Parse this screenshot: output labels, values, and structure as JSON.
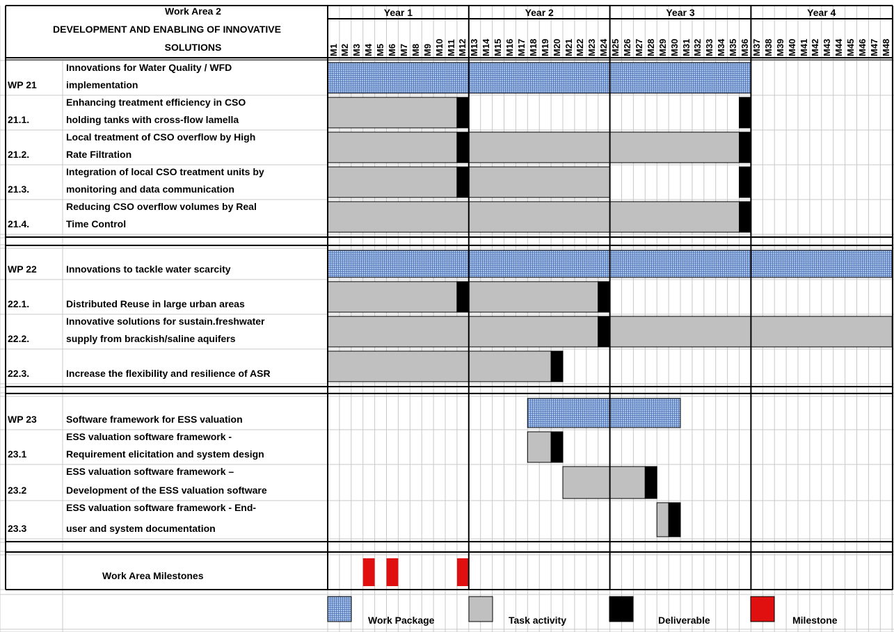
{
  "chart_data": {
    "type": "gantt",
    "header": {
      "line1": "Work Area 2",
      "line2": "DEVELOPMENT AND ENABLING OF INNOVATIVE",
      "line3": "SOLUTIONS"
    },
    "years": [
      "Year 1",
      "Year 2",
      "Year 3",
      "Year 4"
    ],
    "months": [
      "M1",
      "M2",
      "M3",
      "M4",
      "M5",
      "M6",
      "M7",
      "M8",
      "M9",
      "M10",
      "M11",
      "M12",
      "M13",
      "M14",
      "M15",
      "M16",
      "M17",
      "M18",
      "M19",
      "M20",
      "M21",
      "M22",
      "M23",
      "M24",
      "M25",
      "M26",
      "M27",
      "M28",
      "M29",
      "M30",
      "M31",
      "M32",
      "M33",
      "M34",
      "M35",
      "M36",
      "M37",
      "M38",
      "M39",
      "M40",
      "M41",
      "M42",
      "M43",
      "M44",
      "M45",
      "M46",
      "M47",
      "M48"
    ],
    "rows": [
      {
        "id": "WP 21",
        "name_line1": "Innovations for Water Quality / WFD",
        "name_line2": "implementation",
        "kind": "wp",
        "bars": [
          {
            "type": "work-package",
            "start": 1,
            "end": 36
          }
        ]
      },
      {
        "id": "21.1.",
        "name_line1": "Enhancing treatment efficiency in CSO",
        "name_line2": "holding tanks with cross-flow lamella",
        "kind": "task",
        "bars": [
          {
            "type": "task",
            "start": 1,
            "end": 11
          },
          {
            "type": "deliverable",
            "start": 12,
            "end": 12
          },
          {
            "type": "deliverable",
            "start": 36,
            "end": 36
          }
        ]
      },
      {
        "id": "21.2.",
        "name_line1": "Local treatment of CSO overflow by High",
        "name_line2": "Rate Filtration",
        "kind": "task",
        "bars": [
          {
            "type": "task",
            "start": 1,
            "end": 11
          },
          {
            "type": "deliverable",
            "start": 12,
            "end": 12
          },
          {
            "type": "task",
            "start": 13,
            "end": 35
          },
          {
            "type": "deliverable",
            "start": 36,
            "end": 36
          }
        ]
      },
      {
        "id": "21.3.",
        "name_line1": "Integration of local CSO treatment units by",
        "name_line2": "monitoring and data communication",
        "kind": "task",
        "bars": [
          {
            "type": "task",
            "start": 1,
            "end": 11
          },
          {
            "type": "deliverable",
            "start": 12,
            "end": 12
          },
          {
            "type": "task",
            "start": 13,
            "end": 24
          },
          {
            "type": "deliverable",
            "start": 36,
            "end": 36
          }
        ]
      },
      {
        "id": "21.4.",
        "name_line1": "Reducing CSO overflow volumes by Real",
        "name_line2": "Time Control",
        "kind": "task",
        "bars": [
          {
            "type": "task",
            "start": 1,
            "end": 35
          },
          {
            "type": "deliverable",
            "start": 36,
            "end": 36
          }
        ]
      },
      {
        "id": "WP 22",
        "name_line1": "",
        "name_line2": "Innovations to tackle water scarcity",
        "kind": "wp",
        "bars": [
          {
            "type": "work-package",
            "start": 1,
            "end": 48
          }
        ]
      },
      {
        "id": "22.1.",
        "name_line1": "",
        "name_line2": "Distributed Reuse  in large urban areas",
        "kind": "task",
        "bars": [
          {
            "type": "task",
            "start": 1,
            "end": 11
          },
          {
            "type": "deliverable",
            "start": 12,
            "end": 12
          },
          {
            "type": "task",
            "start": 13,
            "end": 23
          },
          {
            "type": "deliverable",
            "start": 24,
            "end": 24
          }
        ]
      },
      {
        "id": "22.2.",
        "name_line1": "Innovative solutions for sustain.freshwater",
        "name_line2": "supply from brackish/saline aquifers",
        "kind": "task",
        "bars": [
          {
            "type": "task",
            "start": 1,
            "end": 23
          },
          {
            "type": "deliverable",
            "start": 24,
            "end": 24
          },
          {
            "type": "task",
            "start": 25,
            "end": 48
          }
        ]
      },
      {
        "id": "22.3.",
        "name_line1": "",
        "name_line2": "Increase the flexibility and resilience of ASR",
        "kind": "task",
        "bars": [
          {
            "type": "task",
            "start": 1,
            "end": 19
          },
          {
            "type": "deliverable",
            "start": 20,
            "end": 20
          }
        ]
      },
      {
        "id": "WP 23",
        "name_line1": "",
        "name_line2": "Software framework for ESS valuation",
        "kind": "wp",
        "bars": [
          {
            "type": "work-package",
            "start": 18,
            "end": 30
          }
        ]
      },
      {
        "id": "23.1",
        "name_line1": "ESS valuation software framework -",
        "name_line2": "Requirement elicitation and  system design",
        "kind": "task",
        "bars": [
          {
            "type": "task",
            "start": 18,
            "end": 19
          },
          {
            "type": "deliverable",
            "start": 20,
            "end": 20
          }
        ]
      },
      {
        "id": "23.2",
        "name_line1": "ESS valuation software framework –",
        "name_line2": "Development of the ESS valuation software",
        "kind": "task",
        "bars": [
          {
            "type": "task",
            "start": 21,
            "end": 27
          },
          {
            "type": "deliverable",
            "start": 28,
            "end": 28
          }
        ]
      },
      {
        "id": "23.3",
        "name_line1": "ESS valuation software framework - End-",
        "name_line2": "user and system documentation",
        "kind": "task",
        "bars": [
          {
            "type": "task",
            "start": 29,
            "end": 29
          },
          {
            "type": "deliverable",
            "start": 30,
            "end": 30
          }
        ]
      }
    ],
    "milestones_label": "Work Area Milestones",
    "milestones": [
      4,
      6,
      12
    ],
    "legend": [
      {
        "type": "work-package",
        "label": "Work Package"
      },
      {
        "type": "task",
        "label": "Task activity"
      },
      {
        "type": "deliverable",
        "label": "Deliverable"
      },
      {
        "type": "milestone",
        "label": "Milestone"
      }
    ],
    "colors": {
      "work_package": "#a9c4e8",
      "work_package_hatch": "#4f74b8",
      "task": "#c0c0c0",
      "deliverable": "#000000",
      "milestone": "#e01010",
      "grid": "#c8c8c8"
    }
  }
}
